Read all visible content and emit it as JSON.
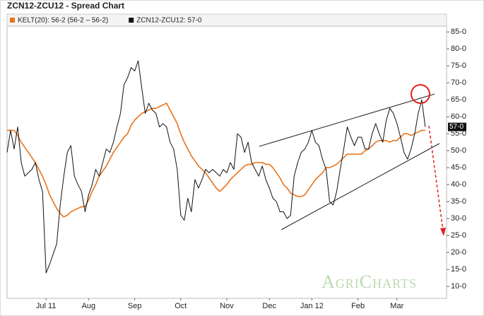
{
  "chart_data": {
    "type": "line",
    "title": "ZCN12-ZCU12 - Spread Chart",
    "categories": [
      null,
      null,
      null,
      null,
      null,
      null,
      null,
      null,
      null,
      null,
      null,
      "Jul 11",
      null,
      null,
      null,
      null,
      null,
      null,
      null,
      null,
      null,
      null,
      null,
      "Aug",
      null,
      null,
      null,
      null,
      null,
      null,
      null,
      null,
      null,
      null,
      null,
      null,
      "Sep",
      null,
      null,
      null,
      null,
      null,
      null,
      null,
      null,
      null,
      null,
      null,
      null,
      "Oct",
      null,
      null,
      null,
      null,
      null,
      null,
      null,
      null,
      null,
      null,
      null,
      null,
      "Nov",
      null,
      null,
      null,
      null,
      null,
      null,
      null,
      null,
      null,
      null,
      null,
      "Dec",
      null,
      null,
      null,
      null,
      null,
      null,
      null,
      null,
      null,
      null,
      null,
      "Jan 12",
      null,
      null,
      null,
      null,
      null,
      null,
      null,
      null,
      null,
      null,
      null,
      null,
      "Feb",
      null,
      null,
      null,
      null,
      null,
      null,
      null,
      null,
      null,
      null,
      "Mar",
      null,
      null,
      null,
      null,
      null,
      null,
      null,
      null,
      null,
      null,
      null,
      null,
      null,
      null
    ],
    "series": [
      {
        "name": "KELT(20): 56-2 (56-2 – 56-2)",
        "color": "#e8731a",
        "values": [
          56,
          56,
          56,
          54.5,
          52.5,
          51,
          49.5,
          48,
          46.5,
          44.5,
          42.5,
          40,
          37,
          35,
          33,
          31.5,
          30.5,
          31,
          32,
          32.5,
          33,
          33.5,
          33.5,
          35.5,
          38,
          40,
          42.5,
          44,
          45.5,
          47.5,
          49.5,
          51,
          52.5,
          54,
          55,
          57.5,
          59,
          60,
          61,
          61.5,
          62,
          62.5,
          62.5,
          63,
          63.5,
          64,
          62,
          60,
          58,
          55,
          52.5,
          50.5,
          48.5,
          47,
          45.5,
          44.5,
          43.5,
          42,
          40.5,
          39,
          38,
          39,
          40,
          41.5,
          42.5,
          43.5,
          44.5,
          45.5,
          46,
          46,
          46.5,
          46.5,
          46.5,
          46,
          46,
          45,
          43.5,
          42,
          40,
          39,
          37.5,
          37,
          36.5,
          36.5,
          37,
          38.5,
          40,
          41.5,
          42.5,
          43.5,
          45,
          45,
          45.5,
          46,
          47,
          48,
          49,
          49,
          49,
          49,
          49,
          50,
          50.5,
          51.5,
          52.5,
          53,
          53,
          53,
          52.5,
          53,
          53,
          54,
          55,
          55,
          54.5,
          55,
          55.5,
          56,
          56,
          null,
          null,
          null,
          null,
          null,
          null
        ]
      },
      {
        "name": "ZCN12-ZCU12: 57-0",
        "color": "#111111",
        "values": [
          49.5,
          56,
          50.5,
          57,
          46.5,
          42.5,
          43.5,
          44.5,
          46.5,
          41.5,
          38,
          14,
          16.5,
          19.5,
          22.5,
          34,
          42.5,
          49.5,
          51.5,
          42.5,
          40,
          38,
          32,
          37,
          40,
          44.5,
          42.5,
          46.5,
          50.5,
          49.5,
          52.5,
          57,
          61,
          69.5,
          71.5,
          74.5,
          73.5,
          76.5,
          68.5,
          61,
          64,
          62,
          61,
          57,
          58,
          57,
          52.5,
          50.5,
          44.5,
          31,
          29.5,
          36,
          32,
          41.5,
          39,
          41.5,
          44.5,
          43.5,
          44.5,
          43.5,
          42.5,
          44.5,
          43.5,
          46.5,
          44.5,
          55,
          54,
          49.5,
          52.5,
          46.5,
          44.5,
          42.5,
          45.5,
          41.5,
          39,
          36,
          35,
          32,
          32,
          30,
          31,
          42.5,
          46.5,
          49.5,
          50.5,
          52.5,
          56,
          52.5,
          51.5,
          47.5,
          44.5,
          35,
          34,
          38,
          44.5,
          50.5,
          57,
          54,
          51.5,
          54,
          54,
          50.5,
          50.5,
          55,
          58,
          55,
          52.5,
          59,
          62.5,
          61,
          58,
          54,
          49.5,
          47.5,
          50.5,
          55,
          61,
          65,
          57,
          null,
          null,
          null,
          null,
          null,
          null
        ]
      }
    ],
    "last_value_label": "57-0",
    "ylim": [
      6.5,
      86.7
    ],
    "yticks": [
      {
        "value": 10,
        "label": "10-0"
      },
      {
        "value": 15,
        "label": "15-0"
      },
      {
        "value": 20,
        "label": "20-0"
      },
      {
        "value": 25,
        "label": "25-0"
      },
      {
        "value": 30,
        "label": "30-0"
      },
      {
        "value": 35,
        "label": "35-0"
      },
      {
        "value": 40,
        "label": "40-0"
      },
      {
        "value": 45,
        "label": "45-0"
      },
      {
        "value": 50,
        "label": "50-0"
      },
      {
        "value": 55,
        "label": "55-0"
      },
      {
        "value": 60,
        "label": "60-0"
      },
      {
        "value": 65,
        "label": "65-0"
      },
      {
        "value": 70,
        "label": "70-0"
      },
      {
        "value": 75,
        "label": "75-0"
      },
      {
        "value": 80,
        "label": "80-0"
      },
      {
        "value": 85,
        "label": "85-0"
      }
    ],
    "grid": false,
    "watermark": "AgriCharts"
  }
}
